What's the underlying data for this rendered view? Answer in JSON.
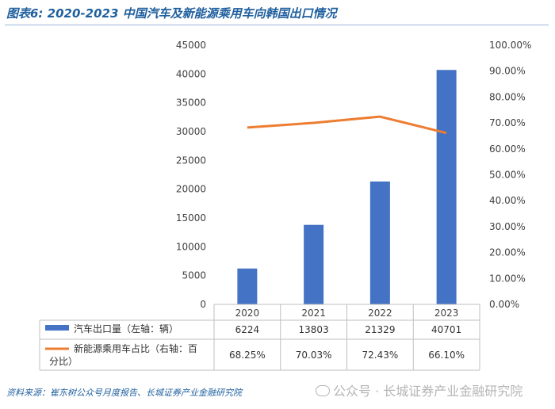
{
  "title": "图表6:  2020-2023 中国汽车及新能源乘用车向韩国出口情况",
  "source": "资料来源：崔东树公众号月度报告、长城证券产业金融研究院",
  "watermark": "公众号 · 长城证券产业金融研究院",
  "colors": {
    "bar": "#4472c4",
    "line": "#ed7d31",
    "title": "#1f5f9e"
  },
  "chart_data": {
    "type": "bar",
    "categories": [
      "2020",
      "2021",
      "2022",
      "2023"
    ],
    "series": [
      {
        "name": "汽车出口量（左轴：辆）",
        "type": "bar",
        "axis": "left",
        "values": [
          6224,
          13803,
          21329,
          40701
        ],
        "display": [
          "6224",
          "13803",
          "21329",
          "40701"
        ]
      },
      {
        "name": "新能源乘用车占比（右轴：百分比）",
        "type": "line",
        "axis": "right",
        "values": [
          68.25,
          70.03,
          72.43,
          66.1
        ],
        "display": [
          "68.25%",
          "70.03%",
          "72.43%",
          "66.10%"
        ]
      }
    ],
    "left_axis": {
      "min": 0,
      "max": 45000,
      "step": 5000
    },
    "right_axis": {
      "min": 0,
      "max": 100,
      "step": 10,
      "suffix": "%",
      "decimals": 2
    },
    "grid": false,
    "legend": "data-table-below"
  }
}
